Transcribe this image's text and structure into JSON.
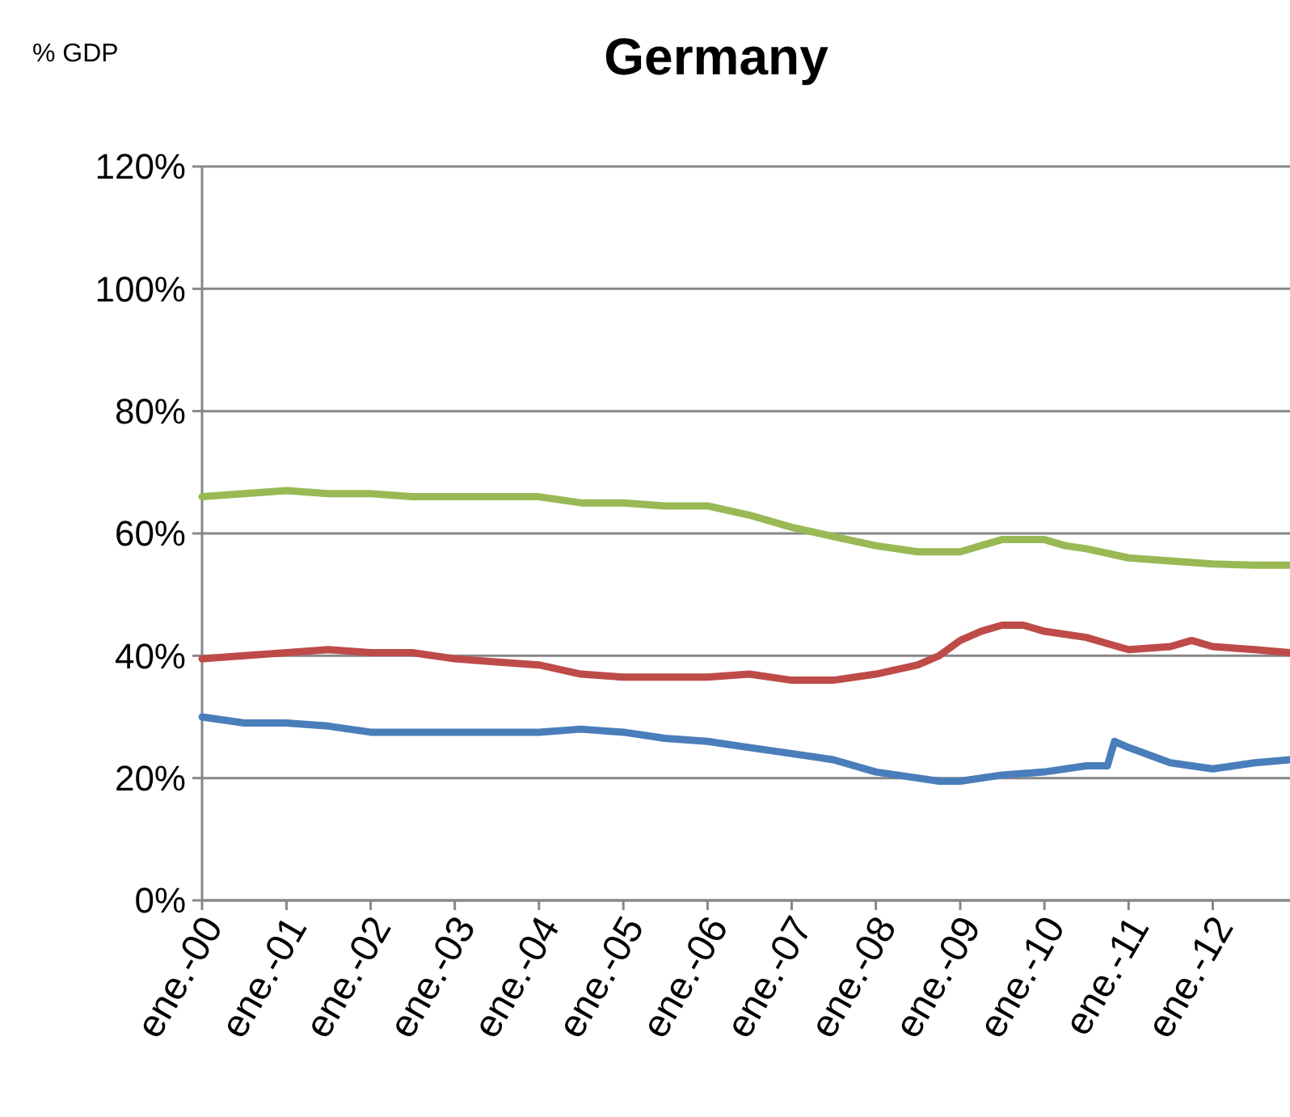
{
  "chart_data": {
    "type": "line",
    "title": "Germany",
    "ylabel": "% GDP",
    "xlim": [
      "2000-01",
      "2012-12"
    ],
    "xticks": [
      {
        "value": "2000-01",
        "label": "ene.-00"
      },
      {
        "value": "2001-01",
        "label": "ene.-01"
      },
      {
        "value": "2002-01",
        "label": "ene.-02"
      },
      {
        "value": "2003-01",
        "label": "ene.-03"
      },
      {
        "value": "2004-01",
        "label": "ene.-04"
      },
      {
        "value": "2005-01",
        "label": "ene.-05"
      },
      {
        "value": "2006-01",
        "label": "ene.-06"
      },
      {
        "value": "2007-01",
        "label": "ene.-07"
      },
      {
        "value": "2008-01",
        "label": "ene.-08"
      },
      {
        "value": "2009-01",
        "label": "ene.-09"
      },
      {
        "value": "2010-01",
        "label": "ene.-10"
      },
      {
        "value": "2011-01",
        "label": "ene.-11"
      },
      {
        "value": "2012-01",
        "label": "ene.-12"
      }
    ],
    "ylim": [
      0,
      120
    ],
    "yticks": [
      {
        "value": 0,
        "label": "0%"
      },
      {
        "value": 20,
        "label": "20%"
      },
      {
        "value": 40,
        "label": "40%"
      },
      {
        "value": 60,
        "label": "60%"
      },
      {
        "value": 80,
        "label": "80%"
      },
      {
        "value": 100,
        "label": "100%"
      },
      {
        "value": 120,
        "label": "120%"
      }
    ],
    "grid": "y",
    "marker": "none",
    "line_style": "solid",
    "series": [
      {
        "color": "#98b954",
        "x": [
          "2000-01",
          "2000-07",
          "2001-01",
          "2001-07",
          "2002-01",
          "2002-07",
          "2003-01",
          "2003-07",
          "2004-01",
          "2004-07",
          "2005-01",
          "2005-07",
          "2006-01",
          "2006-07",
          "2007-01",
          "2007-07",
          "2008-01",
          "2008-07",
          "2009-01",
          "2009-04",
          "2009-07",
          "2010-01",
          "2010-04",
          "2010-07",
          "2011-01",
          "2011-07",
          "2012-01",
          "2012-07",
          "2012-12"
        ],
        "values": [
          66,
          66.5,
          67,
          66.5,
          66.5,
          66,
          66,
          66,
          66,
          65,
          65,
          64.5,
          64.5,
          63,
          61,
          59.5,
          58,
          57,
          57,
          58,
          59,
          59,
          58,
          57.5,
          56,
          55.5,
          55,
          54.8,
          54.8
        ]
      },
      {
        "color": "#be4b48",
        "x": [
          "2000-01",
          "2000-07",
          "2001-01",
          "2001-07",
          "2002-01",
          "2002-07",
          "2003-01",
          "2003-07",
          "2004-01",
          "2004-07",
          "2005-01",
          "2005-07",
          "2006-01",
          "2006-07",
          "2007-01",
          "2007-07",
          "2008-01",
          "2008-07",
          "2008-10",
          "2009-01",
          "2009-04",
          "2009-07",
          "2009-10",
          "2010-01",
          "2010-07",
          "2010-10",
          "2011-01",
          "2011-07",
          "2011-10",
          "2012-01",
          "2012-07",
          "2012-12"
        ],
        "values": [
          39.5,
          40,
          40.5,
          41,
          40.5,
          40.5,
          39.5,
          39,
          38.5,
          37,
          36.5,
          36.5,
          36.5,
          37,
          36,
          36,
          37,
          38.5,
          40,
          42.5,
          44,
          45,
          45,
          44,
          43,
          42,
          41,
          41.5,
          42.5,
          41.5,
          41,
          40.5
        ]
      },
      {
        "color": "#4a7ebb",
        "x": [
          "2000-01",
          "2000-07",
          "2001-01",
          "2001-07",
          "2002-01",
          "2002-07",
          "2003-01",
          "2003-07",
          "2004-01",
          "2004-07",
          "2005-01",
          "2005-07",
          "2006-01",
          "2006-07",
          "2007-01",
          "2007-07",
          "2008-01",
          "2008-07",
          "2008-10",
          "2009-01",
          "2009-07",
          "2010-01",
          "2010-07",
          "2010-10",
          "2010-11",
          "2011-01",
          "2011-07",
          "2012-01",
          "2012-04",
          "2012-07",
          "2012-12"
        ],
        "values": [
          30,
          29,
          29,
          28.5,
          27.5,
          27.5,
          27.5,
          27.5,
          27.5,
          28,
          27.5,
          26.5,
          26,
          25,
          24,
          23,
          21,
          20,
          19.5,
          19.5,
          20.5,
          21,
          22,
          22,
          26,
          25,
          22.5,
          21.5,
          22,
          22.5,
          23
        ]
      }
    ]
  }
}
